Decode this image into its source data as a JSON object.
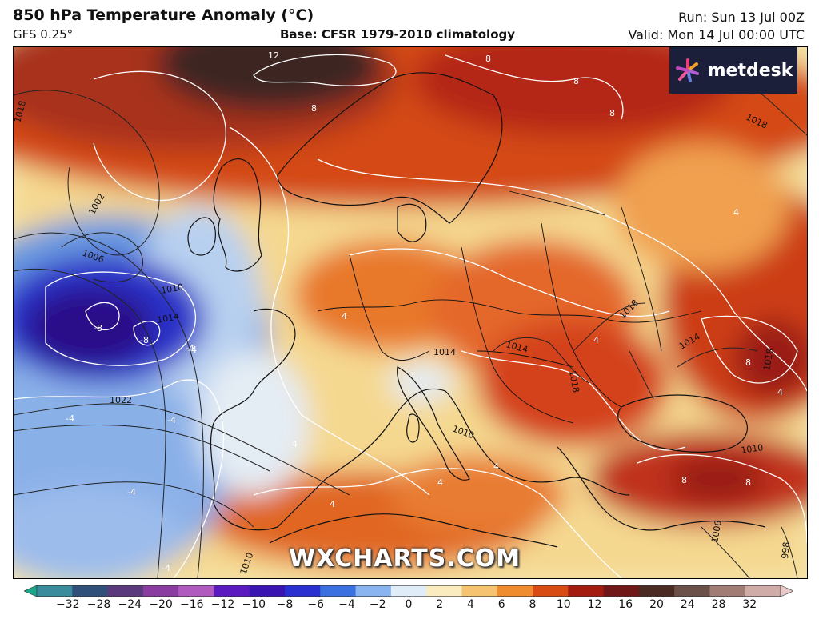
{
  "header": {
    "title": "850 hPa Temperature Anomaly (°C)",
    "model": "GFS 0.25°",
    "base": "Base: CFSR 1979-2010 climatology",
    "run": "Run: Sun 13 Jul 00Z",
    "valid": "Valid: Mon 14 Jul 00:00 UTC"
  },
  "logo": {
    "text": "metdesk"
  },
  "watermark": "WXCHARTS.COM",
  "isobar_labels": [
    "1018",
    "1002",
    "1006",
    "1010",
    "1014",
    "1022",
    "1018",
    "1018",
    "1018",
    "1014",
    "1014",
    "1014",
    "1010",
    "1010",
    "1006",
    "998",
    "1010",
    "1018"
  ],
  "anomaly_labels": [
    "12",
    "8",
    "8",
    "8",
    "8",
    "-4",
    "-8",
    "-8",
    "-4",
    "-4",
    "-4",
    "-4",
    "-4",
    "4",
    "4",
    "4",
    "4",
    "4",
    "4",
    "4",
    "8",
    "8",
    "8",
    "4",
    "4"
  ],
  "colorbar": {
    "ticks": [
      "−32",
      "−28",
      "−24",
      "−20",
      "−16",
      "−12",
      "−10",
      "−8",
      "−6",
      "−4",
      "−2",
      "0",
      "2",
      "4",
      "6",
      "8",
      "10",
      "12",
      "16",
      "20",
      "24",
      "28",
      "32"
    ],
    "colors": [
      "#1aa88a",
      "#3a8c9c",
      "#30507a",
      "#5a3a7c",
      "#8a3ca0",
      "#b05ac0",
      "#5a1ac0",
      "#3a14b0",
      "#2a30d0",
      "#3a70e0",
      "#8ab4f0",
      "#e0ecf8",
      "#fbecc0",
      "#f6c470",
      "#f08c30",
      "#d84c14",
      "#a41c10",
      "#701818",
      "#4a2a22",
      "#6a5048",
      "#a07c74",
      "#d0aca8",
      "#e8c8c8"
    ]
  }
}
